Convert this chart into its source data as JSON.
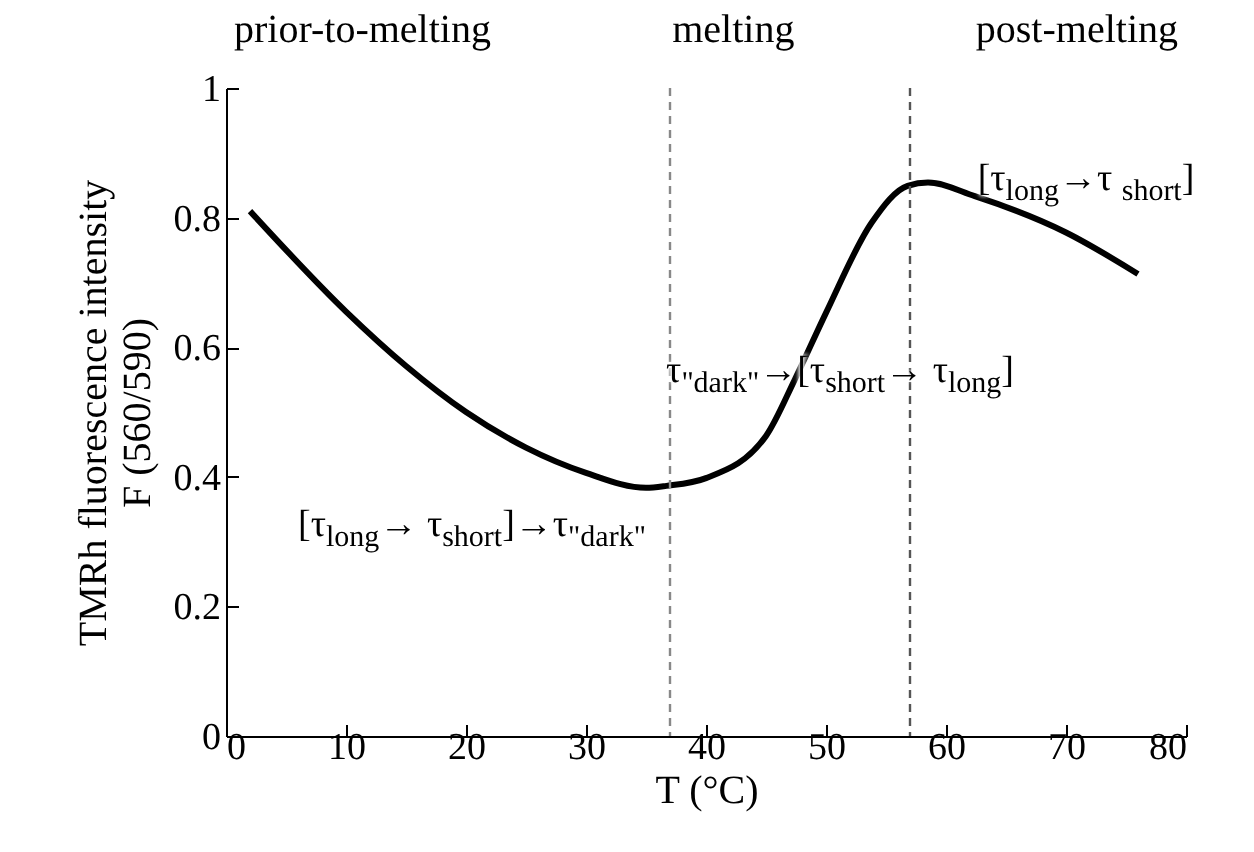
{
  "chart_data": {
    "type": "line",
    "xlabel": "T (°C)",
    "ylabel": "TMRh fluorescence intensity\nF (560/590)",
    "x": [
      2,
      10,
      15,
      20,
      25,
      30,
      35,
      36.7,
      40,
      45,
      47.4,
      50,
      53.8,
      56.8,
      58.5,
      62.4,
      70,
      76
    ],
    "series": [
      {
        "color": "#000000",
        "values": [
          0.81,
          0.655,
          0.571,
          0.5,
          0.445,
          0.406,
          0.383,
          0.386,
          0.398,
          0.463,
          0.55,
          0.653,
          0.792,
          0.849,
          0.854,
          0.833,
          0.777,
          0.713
        ]
      }
    ],
    "xlim": [
      0,
      80
    ],
    "xticks": [
      0,
      10,
      20,
      30,
      40,
      50,
      60,
      70,
      80
    ],
    "ylim": [
      0,
      1
    ],
    "yticks": [
      0,
      0.2,
      0.4,
      0.6,
      0.8,
      1
    ],
    "grid": false,
    "marker": "none",
    "line_style": "solid",
    "ref_lines": [
      {
        "axis": "x",
        "value": 37,
        "color": "#888888",
        "line_style": "dashed"
      },
      {
        "axis": "x",
        "value": 57,
        "color": "#555555",
        "line_style": "dashed"
      }
    ],
    "annotations": [
      "prior-to-melting",
      "melting",
      "post-melting",
      "[τ$_{long}$→ τ$_{short}$]→τ$_{\"dark\"}$",
      "τ$_{\"dark\"}$→[τ$_{short}$→ τ$_{long}$]",
      "[τ$_{long}$→τ $_{short}$]"
    ]
  }
}
